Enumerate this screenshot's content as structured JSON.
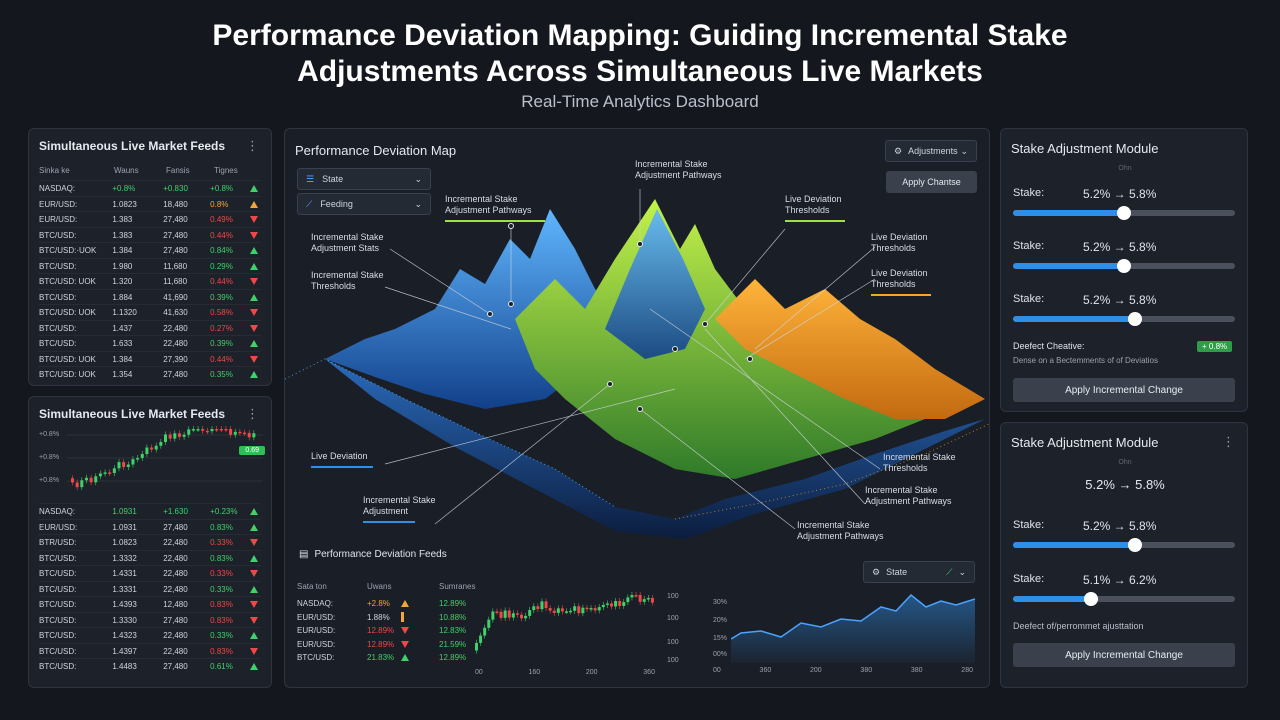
{
  "header": {
    "title_line1": "Performance Deviation Mapping: Guiding Incremental Stake",
    "title_line2": "Adjustments Across Simultaneous Live Markets",
    "subtitle": "Real-Time Analytics Dashboard"
  },
  "feeds_top": {
    "title": "Simultaneous Live Market Feeds",
    "columns": [
      "Sinka ke",
      "Wauns",
      "Fansis",
      "Tignes"
    ],
    "rows": [
      {
        "name": "NASDAQ:",
        "a": "+0.8%",
        "b": "+0.830",
        "c": "+0.8%",
        "trend": "up"
      },
      {
        "name": "EUR/USD:",
        "a": "1.0823",
        "b": "18,480",
        "c": "0.8%",
        "trend": "warn"
      },
      {
        "name": "EUR/USD:",
        "a": "1.383",
        "b": "27,480",
        "c": "0.49%",
        "trend": "down"
      },
      {
        "name": "BTC/USD:",
        "a": "1.383",
        "b": "27,480",
        "c": "0.44%",
        "trend": "down"
      },
      {
        "name": "BTC/USD:·UOK",
        "a": "1.384",
        "b": "27,480",
        "c": "0.84%",
        "trend": "up"
      },
      {
        "name": "BTC/USD:",
        "a": "1.980",
        "b": "11,680",
        "c": "0.29%",
        "trend": "up"
      },
      {
        "name": "BTC/USD: UOK",
        "a": "1.320",
        "b": "11,680",
        "c": "0.44%",
        "trend": "down"
      },
      {
        "name": "BTC/USD:",
        "a": "1.884",
        "b": "41,690",
        "c": "0.39%",
        "trend": "up"
      },
      {
        "name": "BTC/USD: UOK",
        "a": "1.1320",
        "b": "41,630",
        "c": "0.58%",
        "trend": "down"
      },
      {
        "name": "BTC/USD:",
        "a": "1.437",
        "b": "22,480",
        "c": "0.27%",
        "trend": "down"
      },
      {
        "name": "BTC/USD:",
        "a": "1.633",
        "b": "22,480",
        "c": "0.39%",
        "trend": "up"
      },
      {
        "name": "BTC/USD: UOK",
        "a": "1.384",
        "b": "27,390",
        "c": "0.44%",
        "trend": "down"
      },
      {
        "name": "BTC/USD: UOK",
        "a": "1.354",
        "b": "27,480",
        "c": "0.35%",
        "trend": "up"
      }
    ]
  },
  "feeds_bottom": {
    "title": "Simultaneous Live Market Feeds",
    "y_ticks": [
      "+0.8%",
      "+0.8%",
      "+0.8%"
    ],
    "price_tag": "0.69",
    "rows": [
      {
        "name": "NASDAQ:",
        "a": "1.0931",
        "b": "+1.630",
        "c": "+0.23%",
        "trend": "up"
      },
      {
        "name": "EUR/USD:",
        "a": "1.0931",
        "b": "27,480",
        "c": "0.83%",
        "trend": "up"
      },
      {
        "name": "BTR/USD:",
        "a": "1.0823",
        "b": "22,480",
        "c": "0.33%",
        "trend": "down"
      },
      {
        "name": "BTC/USD:",
        "a": "1.3332",
        "b": "22,480",
        "c": "0.83%",
        "trend": "up"
      },
      {
        "name": "BTC/USD:",
        "a": "1.4331",
        "b": "22,480",
        "c": "0.33%",
        "trend": "down"
      },
      {
        "name": "BTC/USD:",
        "a": "1.3331",
        "b": "22,480",
        "c": "0.33%",
        "trend": "up"
      },
      {
        "name": "BTC/USD:",
        "a": "1.4393",
        "b": "12,480",
        "c": "0.83%",
        "trend": "down"
      },
      {
        "name": "BTC/USD:",
        "a": "1.3330",
        "b": "27,480",
        "c": "0.83%",
        "trend": "down"
      },
      {
        "name": "BTC/USD:",
        "a": "1.4323",
        "b": "22,480",
        "c": "0.33%",
        "trend": "up"
      },
      {
        "name": "BTC/USD:",
        "a": "1.4397",
        "b": "22,480",
        "c": "0.83%",
        "trend": "down"
      },
      {
        "name": "BTC/USD:",
        "a": "1.4483",
        "b": "27,480",
        "c": "0.61%",
        "trend": "up"
      }
    ]
  },
  "map": {
    "title": "Performance Deviation Map",
    "dropdown_state": "State",
    "dropdown_feeding": "Feeding",
    "dropdown_adjustments": "Adjustments",
    "apply_button": "Apply Chantse",
    "annotations": {
      "top_center": "Incremental Stake\nAdjustment Pathways",
      "a1": "Incremental Stake\nAdjustment Pathways",
      "a2": "Incremental Stake\nAdjustment Stats",
      "a3": "Incremental Stake\nThresholds",
      "a4": "Live Deviation\nThresholds",
      "a5": "Live Deviation\nThresholds",
      "a6": "Live Deviation\nThresholds",
      "a7": "Live Deviation",
      "a8": "Incremental Stake\nAdjustment",
      "a9": "Incremental Stake\nThresholds",
      "a10": "Incremental Stake\nAdjustment Pathways",
      "a11": "Incremental Stake\nAdjustment Pathways"
    },
    "accent_green": "#9fe03a",
    "accent_orange": "#f5a623",
    "accent_blue": "#2f8fe8"
  },
  "deviation_feeds": {
    "title": "Performance Deviation Feeds",
    "columns": [
      "Sata ton",
      "Uwans",
      "Sumranes"
    ],
    "rows": [
      {
        "name": "NASDAQ:",
        "a": "+2.8%",
        "c": "12.89%",
        "trend": "warn"
      },
      {
        "name": "EUR/USD:",
        "a": "1.88%",
        "c": "10.88%",
        "trend": "bar"
      },
      {
        "name": "EUR/USD:",
        "a": "12.89%",
        "c": "12.83%",
        "trend": "down"
      },
      {
        "name": "EUR/USD:",
        "a": "12.89%",
        "c": "21.59%",
        "trend": "down"
      },
      {
        "name": "BTC/USD:",
        "a": "21.83%",
        "c": "12.89%",
        "trend": "up"
      }
    ],
    "chart_y": [
      "100",
      "100",
      "100",
      "100"
    ],
    "chart_x": [
      "00",
      "160",
      "200",
      "360"
    ],
    "state_dropdown": "State",
    "line_y": [
      "30%",
      "20%",
      "15%",
      "00%"
    ],
    "line_x": [
      "00",
      "360",
      "200",
      "380",
      "380",
      "280"
    ]
  },
  "stake_top": {
    "title": "Stake Adjustment Module",
    "caption": "Ohn",
    "rows": [
      {
        "label": "Stake:",
        "value": "5.2% → 5.8%",
        "level": 0.5
      },
      {
        "label": "Stake:",
        "value": "5.2% → 5.8%",
        "level": 0.5
      },
      {
        "label": "Stake:",
        "value": "5.2% → 5.8%",
        "level": 0.55
      }
    ],
    "deflect_label": "Deefect Cheative:",
    "deflect_badge": "+ 0.8%",
    "desc": "Dense on a Bectemments of of Deviatios",
    "apply": "Apply Incremental Change"
  },
  "stake_bottom": {
    "title": "Stake Adjustment Module",
    "caption": "Ohn",
    "headline": "5.2% → 5.8%",
    "rows": [
      {
        "label": "Stake:",
        "value": "5.2% → 5.8%",
        "level": 0.55
      },
      {
        "label": "Stake:",
        "value": "5.1% → 6.2%",
        "level": 0.35
      }
    ],
    "desc": "Deefect of/perrommet ajusttation",
    "apply": "Apply Incremental Change"
  }
}
